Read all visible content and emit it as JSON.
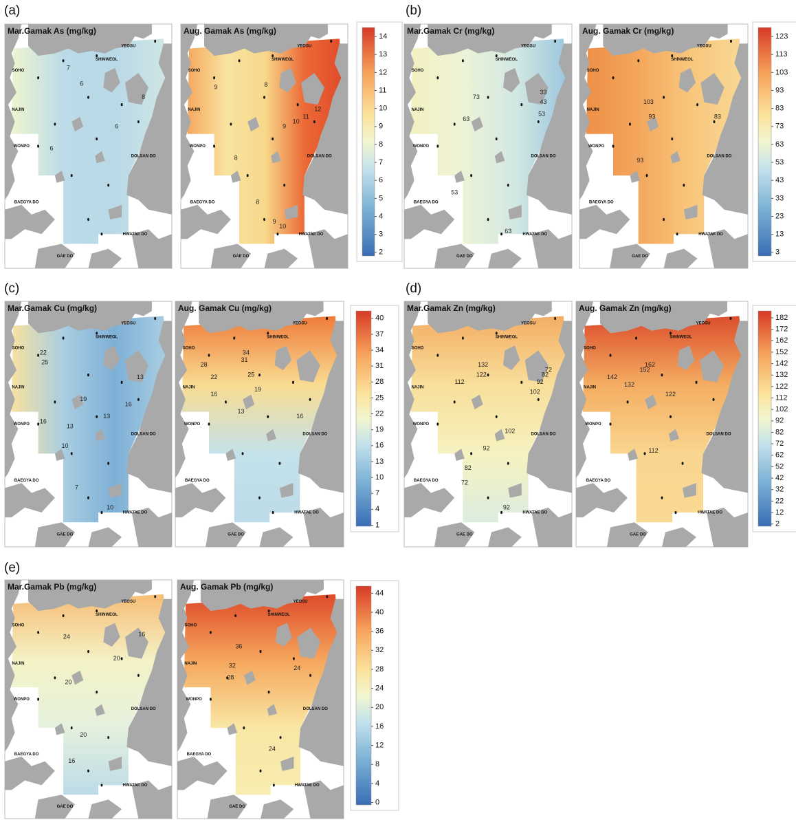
{
  "place_names": [
    "YEOSU",
    "SHINWEOL",
    "SOHO",
    "NAJIN",
    "WONPO",
    "DOLSAN DO",
    "BAEGYA DO",
    "HWATAE DO",
    "GAE DO"
  ],
  "panels": [
    {
      "label": "(a)",
      "maps": [
        {
          "title": "Mar.Gamak As (mg/kg)",
          "contour_labels": [
            "7",
            "6",
            "8",
            "6",
            "6"
          ]
        },
        {
          "title": "Aug. Gamak As (mg/kg)",
          "contour_labels": [
            "9",
            "8",
            "9",
            "10",
            "11",
            "12",
            "8",
            "8",
            "9",
            "10"
          ]
        }
      ],
      "colorbar": {
        "range": [
          1.8,
          14.5
        ],
        "ticks": [
          2,
          3,
          4,
          5,
          6,
          7,
          8,
          9,
          10,
          11,
          12,
          13,
          14
        ]
      }
    },
    {
      "label": "(b)",
      "maps": [
        {
          "title": "Mar.Gamak Cr (mg/kg)",
          "contour_labels": [
            "73",
            "63",
            "33",
            "43",
            "53",
            "53",
            "63"
          ]
        },
        {
          "title": "Aug. Gamak Cr (mg/kg)",
          "contour_labels": [
            "103",
            "93",
            "83",
            "93"
          ]
        }
      ],
      "colorbar": {
        "range": [
          1,
          128
        ],
        "ticks": [
          3,
          13,
          23,
          33,
          43,
          53,
          63,
          73,
          83,
          93,
          103,
          113,
          123
        ]
      }
    },
    {
      "label": "(c)",
      "maps": [
        {
          "title": "Mar.Gamak Cu (mg/kg)",
          "contour_labels": [
            "22",
            "25",
            "19",
            "16",
            "13",
            "10",
            "13",
            "16",
            "13",
            "7",
            "10"
          ]
        },
        {
          "title": "Aug. Gamak Cu (mg/kg)",
          "contour_labels": [
            "28",
            "34",
            "31",
            "25",
            "22",
            "19",
            "16",
            "13",
            "16"
          ]
        }
      ],
      "colorbar": {
        "range": [
          0.8,
          41.4
        ],
        "ticks": [
          1,
          4,
          7,
          10,
          13,
          16,
          19,
          22,
          25,
          28,
          31,
          34,
          37,
          40
        ]
      }
    },
    {
      "label": "(d)",
      "maps": [
        {
          "title": "Mar.Gamak Zn (mg/kg)",
          "contour_labels": [
            "132",
            "122",
            "112",
            "72",
            "82",
            "92",
            "102",
            "102",
            "92",
            "82",
            "72",
            "92"
          ]
        },
        {
          "title": "Aug. Gamak Zn (mg/kg)",
          "contour_labels": [
            "162",
            "152",
            "142",
            "132",
            "122",
            "112"
          ]
        }
      ],
      "colorbar": {
        "range": [
          0,
          188
        ],
        "ticks": [
          2,
          12,
          22,
          32,
          42,
          52,
          62,
          72,
          82,
          92,
          102,
          112,
          122,
          132,
          142,
          152,
          162,
          172,
          182
        ]
      }
    },
    {
      "label": "(e)",
      "maps": [
        {
          "title": "Mar.Gamak Pb (mg/kg)",
          "contour_labels": [
            "24",
            "16",
            "20",
            "20",
            "20",
            "16"
          ]
        },
        {
          "title": "Aug. Gamak Pb (mg/kg)",
          "contour_labels": [
            "36",
            "32",
            "28",
            "24",
            "24"
          ]
        }
      ],
      "colorbar": {
        "range": [
          -0.5,
          45.5
        ],
        "ticks": [
          0,
          4,
          8,
          12,
          16,
          20,
          24,
          28,
          32,
          36,
          40,
          44
        ]
      }
    }
  ]
}
